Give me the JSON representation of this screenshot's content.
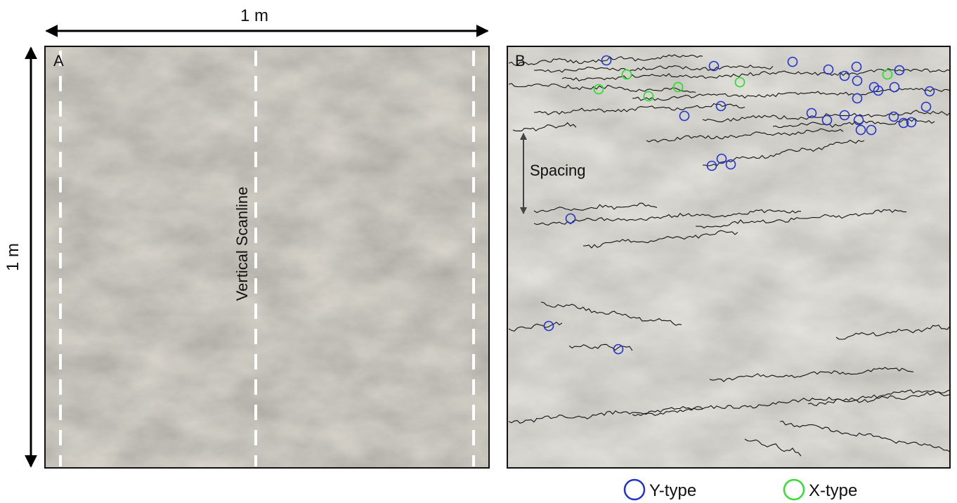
{
  "figure": {
    "width_label": "1 m",
    "height_label": "1 m",
    "panel_a": {
      "label": "A",
      "scanline_label": "Vertical Scanline"
    },
    "panel_b": {
      "label": "B",
      "spacing_label": "Spacing"
    },
    "legend": {
      "y_type": "Y-type",
      "x_type": "X-type"
    }
  }
}
